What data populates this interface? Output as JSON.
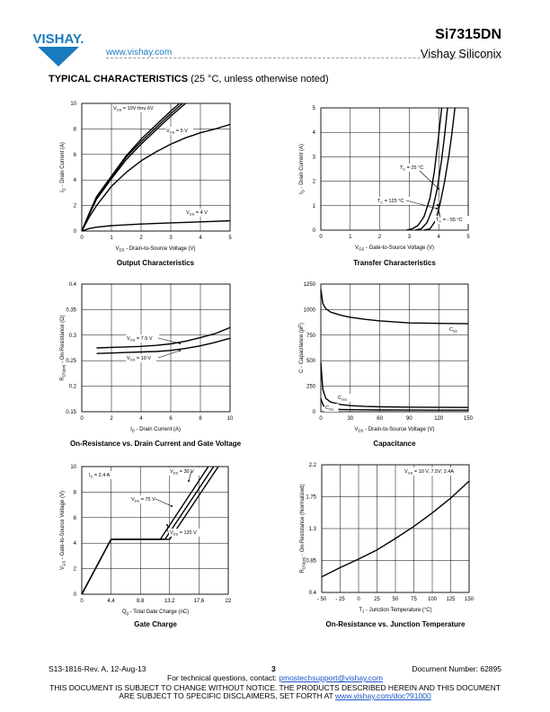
{
  "header": {
    "brand": "VISHAY.",
    "url": "www.vishay.com",
    "part_number": "Si7315DN",
    "company": "Vishay Siliconix",
    "section_bold": "TYPICAL CHARACTERISTICS",
    "section_rest": " (25 °C, unless otherwise noted)",
    "brand_color": "#1a7abf"
  },
  "footer": {
    "doc_rev": "S13-1816-Rev. A,  12-Aug-13",
    "page": "3",
    "doc_number": "Document Number: 62895",
    "contact_prefix": "For technical questions, contact: ",
    "contact_email": "pmostechsupport@vishay.com",
    "notice1": "THIS DOCUMENT IS SUBJECT TO CHANGE WITHOUT NOTICE. THE PRODUCTS DESCRIBED HEREIN AND THIS DOCUMENT",
    "notice2_prefix": "ARE SUBJECT TO SPECIFIC DISCLAIMERS, SET FORTH AT ",
    "notice2_link": "www.vishay.com/doc?91000"
  },
  "chart_data": [
    {
      "id": "output",
      "type": "line",
      "title": "Output Characteristics",
      "xlabel": "V_DS - Drain-to-Source Voltage (V)",
      "ylabel": "I_D - Drain Current (A)",
      "xlim": [
        0,
        5
      ],
      "ylim": [
        0,
        10
      ],
      "xticks": [
        0,
        1,
        2,
        3,
        4,
        5
      ],
      "yticks": [
        0,
        2,
        4,
        6,
        8,
        10
      ],
      "grid": true,
      "series": [
        {
          "name": "V_GS = 10V thru 6V",
          "x": [
            0,
            0.25,
            0.5,
            1,
            1.5,
            2,
            2.5,
            3,
            3.5
          ],
          "y": [
            0,
            1.3,
            2.5,
            4.1,
            5.6,
            6.8,
            7.9,
            9.0,
            10
          ]
        },
        {
          "name": "V_GS = 10V thru 6V",
          "x": [
            0,
            0.25,
            0.5,
            1,
            1.5,
            2,
            2.5,
            3,
            3.4
          ],
          "y": [
            0,
            1.35,
            2.6,
            4.2,
            5.8,
            7.0,
            8.1,
            9.2,
            10
          ]
        },
        {
          "name": "V_GS = 10V thru 6V",
          "x": [
            0,
            0.25,
            0.5,
            1,
            1.5,
            2,
            2.5,
            3,
            3.3
          ],
          "y": [
            0,
            1.4,
            2.7,
            4.3,
            5.9,
            7.2,
            8.3,
            9.4,
            10
          ]
        },
        {
          "name": "V_GS = 5 V",
          "x": [
            0,
            0.25,
            0.5,
            1,
            1.5,
            2,
            2.5,
            3,
            3.5,
            4,
            4.5,
            5
          ],
          "y": [
            0,
            1.1,
            2.0,
            3.5,
            4.6,
            5.5,
            6.2,
            6.8,
            7.3,
            7.7,
            8.0,
            8.35
          ]
        },
        {
          "name": "V_GS = 4 V",
          "x": [
            0,
            0.25,
            0.5,
            1,
            2,
            3,
            4,
            5
          ],
          "y": [
            0,
            0.2,
            0.3,
            0.42,
            0.55,
            0.64,
            0.72,
            0.8
          ]
        }
      ],
      "labels": [
        "V_GS = 10V thru 6V",
        "V_GS = 5 V",
        "V_GS = 4 V"
      ]
    },
    {
      "id": "transfer",
      "type": "line",
      "title": "Transfer Characteristics",
      "xlabel": "V_GS - Gate-to-Source Voltage (V)",
      "ylabel": "I_D - Drain Current (A)",
      "xlim": [
        0,
        5
      ],
      "ylim": [
        0,
        5
      ],
      "xticks": [
        0,
        1,
        2,
        3,
        4,
        5
      ],
      "yticks": [
        0,
        1,
        2,
        3,
        4,
        5
      ],
      "grid": true,
      "series": [
        {
          "name": "T_C = 125 °C",
          "x": [
            2.9,
            3.1,
            3.3,
            3.5,
            3.7,
            3.85,
            4.0,
            4.1
          ],
          "y": [
            0,
            0.05,
            0.2,
            0.55,
            1.3,
            2.4,
            3.9,
            5
          ]
        },
        {
          "name": "T_C = 25 °C",
          "x": [
            3.2,
            3.4,
            3.6,
            3.8,
            3.95,
            4.1,
            4.2,
            4.3
          ],
          "y": [
            0,
            0.05,
            0.3,
            0.9,
            1.7,
            2.9,
            3.9,
            5
          ]
        },
        {
          "name": "T_C = - 55 °C",
          "x": [
            3.5,
            3.7,
            3.9,
            4.05,
            4.2,
            4.35,
            4.45,
            4.55
          ],
          "y": [
            0,
            0.05,
            0.4,
            1.1,
            2.0,
            3.1,
            4.0,
            5
          ]
        }
      ],
      "labels": [
        "T_C = 25 °C",
        "T_C = 125 °C",
        "T_C = - 55 °C"
      ]
    },
    {
      "id": "onres",
      "type": "line",
      "title": "On-Resistance vs. Drain Current and Gate Voltage",
      "xlabel": "I_D - Drain Current (A)",
      "ylabel": "R_DS(on) - On-Resistance (Ω)",
      "xlim": [
        0,
        10
      ],
      "ylim": [
        0.15,
        0.4
      ],
      "xticks": [
        0,
        2,
        4,
        6,
        8,
        10
      ],
      "yticks": [
        0.15,
        0.2,
        0.25,
        0.3,
        0.35,
        0.4
      ],
      "grid": true,
      "series": [
        {
          "name": "V_GS = 7.5 V",
          "x": [
            1,
            2,
            3,
            4,
            5,
            6,
            7,
            8,
            9,
            10
          ],
          "y": [
            0.275,
            0.276,
            0.277,
            0.278,
            0.28,
            0.283,
            0.288,
            0.295,
            0.303,
            0.315
          ]
        },
        {
          "name": "V_GS = 10 V",
          "x": [
            1,
            2,
            3,
            4,
            5,
            6,
            7,
            8,
            9,
            10
          ],
          "y": [
            0.264,
            0.265,
            0.266,
            0.267,
            0.268,
            0.27,
            0.274,
            0.279,
            0.286,
            0.294
          ]
        }
      ],
      "labels": [
        "V_GS = 7.5 V",
        "V_GS = 10 V"
      ]
    },
    {
      "id": "cap",
      "type": "line",
      "title": "Capacitance",
      "xlabel": "V_DS - Drain-to-Source Voltage (V)",
      "ylabel": "C - Capacitance (pF)",
      "xlim": [
        0,
        150
      ],
      "ylim": [
        0,
        1250
      ],
      "xticks": [
        0,
        30,
        60,
        90,
        120,
        150
      ],
      "yticks": [
        0,
        250,
        500,
        750,
        1000,
        1250
      ],
      "grid": true,
      "series": [
        {
          "name": "C_iss",
          "x": [
            0,
            2,
            5,
            10,
            20,
            30,
            45,
            60,
            90,
            120,
            150
          ],
          "y": [
            1200,
            1060,
            1010,
            975,
            945,
            925,
            905,
            890,
            870,
            865,
            862
          ]
        },
        {
          "name": "C_oss",
          "x": [
            0,
            2,
            5,
            10,
            20,
            30,
            45,
            60,
            90,
            120,
            150
          ],
          "y": [
            480,
            220,
            130,
            95,
            70,
            60,
            52,
            48,
            45,
            43,
            42
          ]
        },
        {
          "name": "C_rss",
          "x": [
            0,
            2,
            5,
            10,
            20,
            30,
            45,
            60,
            90,
            120,
            150
          ],
          "y": [
            130,
            70,
            40,
            30,
            22,
            20,
            19,
            18,
            17,
            16,
            16
          ]
        }
      ],
      "labels": [
        "C_iss",
        "C_oss",
        "C_rss"
      ]
    },
    {
      "id": "gate",
      "type": "line",
      "title": "Gate Charge",
      "xlabel": "Q_g - Total Gate Charge (nC)",
      "ylabel": "V_GS - Gate-to-Source Voltage (V)",
      "xlim": [
        0,
        22
      ],
      "ylim": [
        0,
        10
      ],
      "xticks": [
        0,
        4.4,
        8.8,
        13.2,
        17.6,
        22
      ],
      "yticks": [
        0,
        2,
        4,
        6,
        8,
        10
      ],
      "grid": true,
      "series": [
        {
          "name": "V_DS = 30 V",
          "x": [
            0,
            4.4,
            13.2,
            20.5
          ],
          "y": [
            0,
            4.3,
            4.3,
            10
          ]
        },
        {
          "name": "V_DS = 75 V",
          "x": [
            0,
            4.4,
            12.5,
            19.8
          ],
          "y": [
            0,
            4.3,
            4.3,
            10
          ]
        },
        {
          "name": "V_DS = 120 V",
          "x": [
            0,
            4.4,
            11.8,
            19.0
          ],
          "y": [
            0,
            4.3,
            4.3,
            10
          ]
        }
      ],
      "labels": [
        "I_D = 2.4 A",
        "V_DS = 30 V",
        "V_DS = 75 V",
        "V_DS = 120 V"
      ]
    },
    {
      "id": "temp",
      "type": "line",
      "title": "On-Resistance vs. Junction Temperature",
      "xlabel": "T_J - Junction Temperature (°C)",
      "ylabel": "R_DS(on) - On-Resistance (Normalized)",
      "xlim": [
        -50,
        150
      ],
      "ylim": [
        0.4,
        2.2
      ],
      "xticks": [
        -50,
        -25,
        0,
        25,
        50,
        75,
        100,
        125,
        150
      ],
      "yticks": [
        0.4,
        0.85,
        1.3,
        1.75,
        2.2
      ],
      "grid": true,
      "series": [
        {
          "name": "V_GS = 10 V, 7.5V; 2.4A",
          "x": [
            -50,
            -25,
            0,
            25,
            50,
            75,
            100,
            125,
            150
          ],
          "y": [
            0.62,
            0.75,
            0.87,
            1.0,
            1.16,
            1.33,
            1.52,
            1.73,
            1.97
          ]
        }
      ],
      "labels": [
        "V_GS = 10 V, 7.5V; 2.4A"
      ]
    }
  ]
}
